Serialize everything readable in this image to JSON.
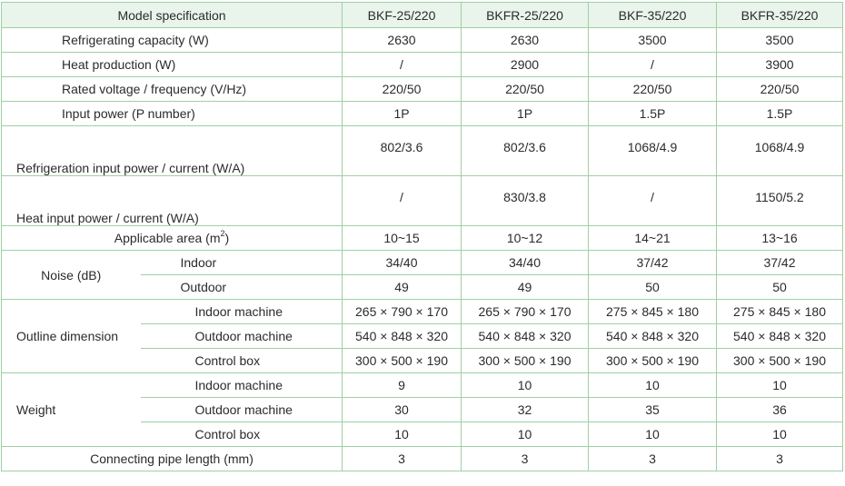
{
  "header": {
    "model_spec": "Model specification",
    "models": [
      "BKF-25/220",
      "BKFR-25/220",
      "BKF-35/220",
      "BKFR-35/220"
    ]
  },
  "rows": {
    "refrigerating_capacity": {
      "label": "Refrigerating capacity (W)",
      "values": [
        "2630",
        "2630",
        "3500",
        "3500"
      ]
    },
    "heat_production": {
      "label": "Heat production (W)",
      "values": [
        "/",
        "2900",
        "/",
        "3900"
      ]
    },
    "rated_voltage": {
      "label": "Rated voltage / frequency (V/Hz)",
      "values": [
        "220/50",
        "220/50",
        "220/50",
        "220/50"
      ]
    },
    "input_power": {
      "label": "Input power (P number)",
      "values": [
        "1P",
        "1P",
        "1.5P",
        "1.5P"
      ]
    },
    "refrigeration_input": {
      "label": "Refrigeration input power / current (W/A)",
      "values": [
        "802/3.6",
        "802/3.6",
        "1068/4.9",
        "1068/4.9"
      ]
    },
    "heat_input": {
      "label": "Heat input power / current (W/A)",
      "values": [
        "/",
        "830/3.8",
        "/",
        "1150/5.2"
      ]
    },
    "applicable_area": {
      "label": "Applicable area (m",
      "sup": "2",
      "label_end": ")",
      "values": [
        "10~15",
        "10~12",
        "14~21",
        "13~16"
      ]
    },
    "noise": {
      "label": "Noise (dB)",
      "indoor": {
        "label": "Indoor",
        "values": [
          "34/40",
          "34/40",
          "37/42",
          "37/42"
        ]
      },
      "outdoor": {
        "label": "Outdoor",
        "values": [
          "49",
          "49",
          "50",
          "50"
        ]
      }
    },
    "outline": {
      "label": "Outline dimension",
      "indoor": {
        "label": "Indoor machine",
        "values": [
          "265 × 790 × 170",
          "265 × 790 × 170",
          "275 × 845 × 180",
          "275 × 845 × 180"
        ]
      },
      "outdoor": {
        "label": "Outdoor machine",
        "values": [
          "540 × 848 × 320",
          "540 × 848 × 320",
          "540 × 848 × 320",
          "540 × 848 × 320"
        ]
      },
      "control": {
        "label": "Control box",
        "values": [
          "300 × 500 × 190",
          "300 × 500 × 190",
          "300 × 500 × 190",
          "300 × 500 × 190"
        ]
      }
    },
    "weight": {
      "label": "Weight",
      "indoor": {
        "label": "Indoor machine",
        "values": [
          "9",
          "10",
          "10",
          "10"
        ]
      },
      "outdoor": {
        "label": "Outdoor machine",
        "values": [
          "30",
          "32",
          "35",
          "36"
        ]
      },
      "control": {
        "label": "Control box",
        "values": [
          "10",
          "10",
          "10",
          "10"
        ]
      }
    },
    "pipe_length": {
      "label": "Connecting pipe length (mm)",
      "values": [
        "3",
        "3",
        "3",
        "3"
      ]
    }
  }
}
